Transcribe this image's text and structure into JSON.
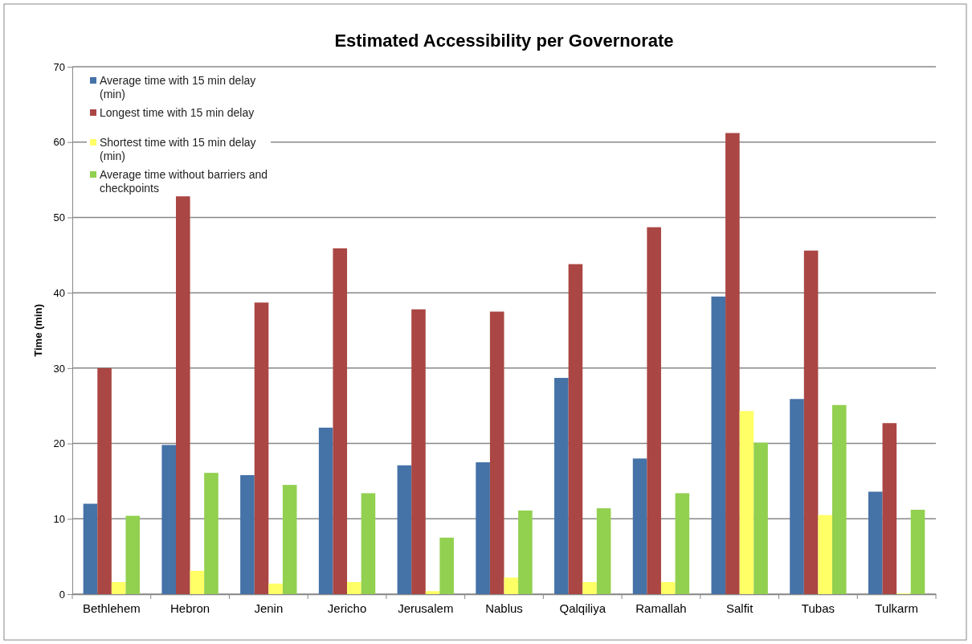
{
  "chart_data": {
    "type": "bar",
    "title": "Estimated Accessibility per Governorate",
    "ylabel": "Time (min)",
    "categories": [
      "Bethlehem",
      "Hebron",
      "Jenin",
      "Jericho",
      "Jerusalem",
      "Nablus",
      "Qalqiliya",
      "Ramallah",
      "Salfit",
      "Tubas",
      "Tulkarm"
    ],
    "series": [
      {
        "name": "Average time with 15 min delay (min)",
        "color": "#4572a7",
        "values": [
          12,
          19.8,
          15.8,
          22.1,
          17.1,
          17.5,
          28.7,
          18,
          39.5,
          25.9,
          13.6
        ]
      },
      {
        "name": "Longest time with 15 min delay",
        "color": "#aa4643",
        "values": [
          30,
          52.8,
          38.7,
          45.9,
          37.8,
          37.5,
          43.8,
          48.7,
          61.2,
          45.6,
          22.7
        ]
      },
      {
        "name": "Shortest time with 15 min delay (min)",
        "color": "#ffff66",
        "values": [
          1.6,
          3.1,
          1.4,
          1.6,
          0.4,
          2.2,
          1.6,
          1.6,
          24.3,
          10.5,
          0.1
        ]
      },
      {
        "name": "Average time without barriers and checkpoints",
        "color": "#92d050",
        "values": [
          10.4,
          16.1,
          14.5,
          13.4,
          7.5,
          11.1,
          11.4,
          13.4,
          20.1,
          25.1,
          11.2
        ]
      }
    ],
    "ylim": [
      0,
      70
    ],
    "yticks": [
      0,
      10,
      20,
      30,
      40,
      50,
      60,
      70
    ],
    "grid": "y",
    "legend": "top left"
  }
}
